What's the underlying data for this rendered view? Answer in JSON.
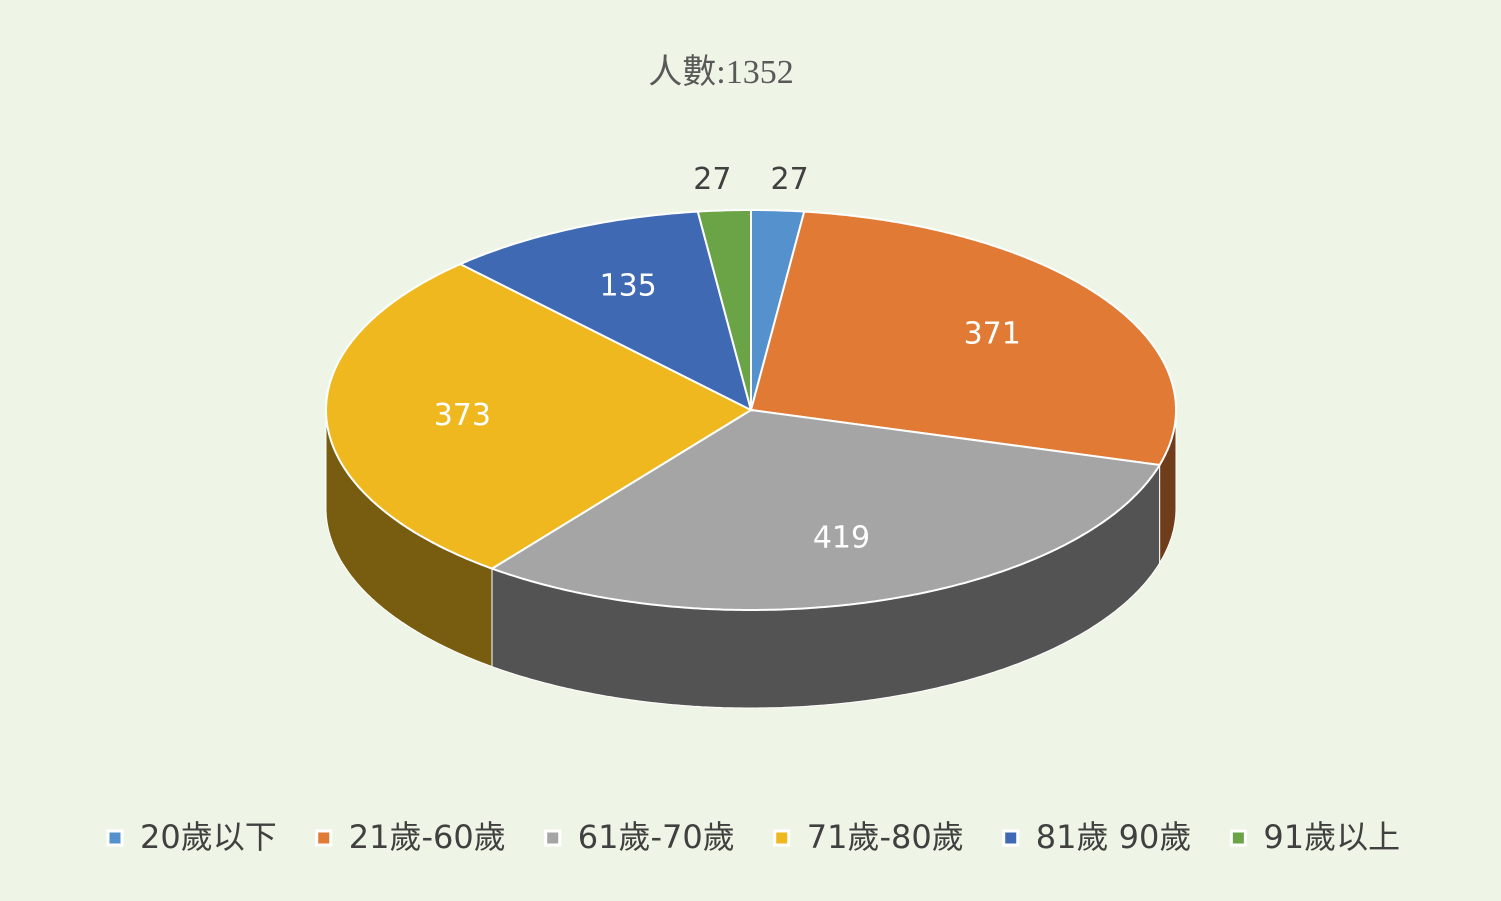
{
  "chart_data": {
    "type": "pie",
    "title": "人數:1352",
    "categories": [
      "20歲以下",
      "21歲-60歲",
      "61歲-70歲",
      "71歲-80歲",
      "81歲 90歲",
      "91歲以上"
    ],
    "values": [
      27,
      371,
      419,
      373,
      135,
      27
    ],
    "colors": [
      "#5591cc",
      "#e07a34",
      "#a5a5a5",
      "#efb81e",
      "#3f69b3",
      "#6aa446"
    ]
  }
}
